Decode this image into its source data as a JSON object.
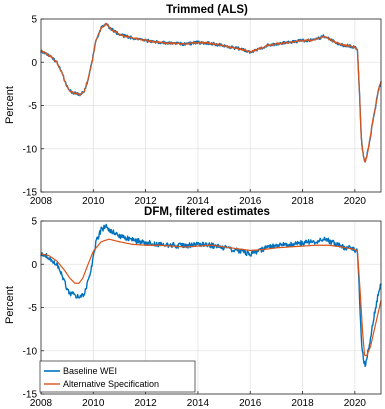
{
  "chart_data": [
    {
      "type": "line",
      "title": "Trimmed (ALS)",
      "xlabel": "",
      "ylabel": "Percent",
      "xlim": [
        2008,
        2021
      ],
      "ylim": [
        -15,
        5
      ],
      "xticks": [
        2008,
        2010,
        2012,
        2014,
        2016,
        2018,
        2020
      ],
      "yticks": [
        -15,
        -10,
        -5,
        0,
        5
      ],
      "grid": true,
      "legend": "none",
      "series": [
        {
          "color": "#0072BD",
          "noise": 0.18,
          "points": [
            [
              2008.0,
              1.3
            ],
            [
              2008.2,
              1.0
            ],
            [
              2008.4,
              0.6
            ],
            [
              2008.6,
              0.0
            ],
            [
              2008.8,
              -1.2
            ],
            [
              2008.95,
              -2.5
            ],
            [
              2009.1,
              -3.3
            ],
            [
              2009.3,
              -3.6
            ],
            [
              2009.5,
              -3.7
            ],
            [
              2009.65,
              -3.4
            ],
            [
              2009.8,
              -2.0
            ],
            [
              2009.95,
              0.0
            ],
            [
              2010.1,
              2.5
            ],
            [
              2010.3,
              4.0
            ],
            [
              2010.5,
              4.4
            ],
            [
              2010.7,
              3.8
            ],
            [
              2011.0,
              3.2
            ],
            [
              2011.5,
              2.8
            ],
            [
              2012.0,
              2.5
            ],
            [
              2012.5,
              2.3
            ],
            [
              2013.0,
              2.2
            ],
            [
              2013.5,
              2.1
            ],
            [
              2014.0,
              2.3
            ],
            [
              2014.5,
              2.2
            ],
            [
              2015.0,
              1.9
            ],
            [
              2015.5,
              1.6
            ],
            [
              2016.0,
              1.2
            ],
            [
              2016.3,
              1.5
            ],
            [
              2016.7,
              2.0
            ],
            [
              2017.0,
              2.1
            ],
            [
              2017.5,
              2.3
            ],
            [
              2018.0,
              2.5
            ],
            [
              2018.5,
              2.6
            ],
            [
              2018.8,
              3.0
            ],
            [
              2019.0,
              2.7
            ],
            [
              2019.5,
              2.0
            ],
            [
              2019.8,
              1.9
            ],
            [
              2020.0,
              1.7
            ],
            [
              2020.1,
              1.5
            ],
            [
              2020.17,
              -3.0
            ],
            [
              2020.25,
              -9.0
            ],
            [
              2020.33,
              -11.0
            ],
            [
              2020.4,
              -11.6
            ],
            [
              2020.5,
              -10.2
            ],
            [
              2020.6,
              -8.5
            ],
            [
              2020.7,
              -6.5
            ],
            [
              2020.8,
              -5.0
            ],
            [
              2020.9,
              -3.2
            ],
            [
              2021.0,
              -2.3
            ]
          ]
        },
        {
          "color": "#D95319",
          "noise": 0.1,
          "points": [
            [
              2008.0,
              1.3
            ],
            [
              2008.2,
              1.0
            ],
            [
              2008.4,
              0.6
            ],
            [
              2008.6,
              0.0
            ],
            [
              2008.8,
              -1.2
            ],
            [
              2008.95,
              -2.5
            ],
            [
              2009.1,
              -3.3
            ],
            [
              2009.3,
              -3.6
            ],
            [
              2009.5,
              -3.7
            ],
            [
              2009.65,
              -3.4
            ],
            [
              2009.8,
              -2.0
            ],
            [
              2009.95,
              0.0
            ],
            [
              2010.1,
              2.5
            ],
            [
              2010.3,
              4.0
            ],
            [
              2010.5,
              4.4
            ],
            [
              2010.7,
              3.8
            ],
            [
              2011.0,
              3.2
            ],
            [
              2011.5,
              2.8
            ],
            [
              2012.0,
              2.5
            ],
            [
              2012.5,
              2.3
            ],
            [
              2013.0,
              2.2
            ],
            [
              2013.5,
              2.1
            ],
            [
              2014.0,
              2.3
            ],
            [
              2014.5,
              2.2
            ],
            [
              2015.0,
              1.9
            ],
            [
              2015.5,
              1.6
            ],
            [
              2016.0,
              1.2
            ],
            [
              2016.3,
              1.5
            ],
            [
              2016.7,
              2.0
            ],
            [
              2017.0,
              2.1
            ],
            [
              2017.5,
              2.3
            ],
            [
              2018.0,
              2.5
            ],
            [
              2018.5,
              2.6
            ],
            [
              2018.8,
              3.0
            ],
            [
              2019.0,
              2.7
            ],
            [
              2019.5,
              2.0
            ],
            [
              2019.8,
              1.9
            ],
            [
              2020.0,
              1.7
            ],
            [
              2020.1,
              1.5
            ],
            [
              2020.17,
              -3.0
            ],
            [
              2020.25,
              -9.0
            ],
            [
              2020.33,
              -11.0
            ],
            [
              2020.4,
              -11.6
            ],
            [
              2020.5,
              -10.2
            ],
            [
              2020.6,
              -8.5
            ],
            [
              2020.7,
              -6.5
            ],
            [
              2020.8,
              -5.0
            ],
            [
              2020.9,
              -3.2
            ],
            [
              2021.0,
              -2.2
            ]
          ]
        }
      ]
    },
    {
      "type": "line",
      "title": "DFM, filtered estimates",
      "xlabel": "",
      "ylabel": "Percent",
      "xlim": [
        2008,
        2021
      ],
      "ylim": [
        -15,
        5
      ],
      "xticks": [
        2008,
        2010,
        2012,
        2014,
        2016,
        2018,
        2020
      ],
      "yticks": [
        -15,
        -10,
        -5,
        0,
        5
      ],
      "grid": true,
      "legend": "bottom-left",
      "series": [
        {
          "name": "Baseline WEI",
          "color": "#0072BD",
          "noise": 0.3,
          "points": [
            [
              2008.0,
              1.3
            ],
            [
              2008.2,
              1.0
            ],
            [
              2008.4,
              0.6
            ],
            [
              2008.6,
              0.0
            ],
            [
              2008.8,
              -1.2
            ],
            [
              2008.95,
              -2.5
            ],
            [
              2009.1,
              -3.3
            ],
            [
              2009.3,
              -3.6
            ],
            [
              2009.5,
              -3.7
            ],
            [
              2009.65,
              -3.4
            ],
            [
              2009.8,
              -2.0
            ],
            [
              2009.95,
              0.0
            ],
            [
              2010.1,
              2.5
            ],
            [
              2010.3,
              4.0
            ],
            [
              2010.5,
              4.4
            ],
            [
              2010.7,
              3.8
            ],
            [
              2011.0,
              3.2
            ],
            [
              2011.5,
              2.8
            ],
            [
              2012.0,
              2.5
            ],
            [
              2012.5,
              2.3
            ],
            [
              2013.0,
              2.2
            ],
            [
              2013.5,
              2.1
            ],
            [
              2014.0,
              2.3
            ],
            [
              2014.5,
              2.2
            ],
            [
              2015.0,
              1.9
            ],
            [
              2015.5,
              1.6
            ],
            [
              2016.0,
              1.2
            ],
            [
              2016.3,
              1.5
            ],
            [
              2016.7,
              2.0
            ],
            [
              2017.0,
              2.1
            ],
            [
              2017.5,
              2.3
            ],
            [
              2018.0,
              2.5
            ],
            [
              2018.5,
              2.6
            ],
            [
              2018.8,
              3.0
            ],
            [
              2019.0,
              2.7
            ],
            [
              2019.5,
              2.0
            ],
            [
              2019.8,
              1.9
            ],
            [
              2020.0,
              1.7
            ],
            [
              2020.1,
              1.5
            ],
            [
              2020.17,
              -3.0
            ],
            [
              2020.25,
              -9.0
            ],
            [
              2020.33,
              -11.0
            ],
            [
              2020.4,
              -11.6
            ],
            [
              2020.5,
              -10.2
            ],
            [
              2020.6,
              -8.5
            ],
            [
              2020.7,
              -6.5
            ],
            [
              2020.8,
              -5.0
            ],
            [
              2020.9,
              -3.2
            ],
            [
              2021.0,
              -2.3
            ]
          ]
        },
        {
          "name": "Alternative Specification",
          "color": "#D95319",
          "noise": 0,
          "points": [
            [
              2008.0,
              1.2
            ],
            [
              2008.3,
              1.0
            ],
            [
              2008.6,
              0.4
            ],
            [
              2008.9,
              -0.7
            ],
            [
              2009.1,
              -1.6
            ],
            [
              2009.3,
              -2.2
            ],
            [
              2009.45,
              -2.2
            ],
            [
              2009.6,
              -1.6
            ],
            [
              2009.8,
              0.0
            ],
            [
              2010.0,
              1.5
            ],
            [
              2010.3,
              2.6
            ],
            [
              2010.6,
              2.9
            ],
            [
              2011.0,
              2.6
            ],
            [
              2011.5,
              2.3
            ],
            [
              2012.0,
              2.2
            ],
            [
              2012.5,
              2.2
            ],
            [
              2013.0,
              2.1
            ],
            [
              2013.5,
              2.0
            ],
            [
              2014.0,
              2.1
            ],
            [
              2014.5,
              2.2
            ],
            [
              2015.0,
              2.0
            ],
            [
              2015.5,
              1.8
            ],
            [
              2016.0,
              1.6
            ],
            [
              2016.5,
              1.7
            ],
            [
              2017.0,
              1.9
            ],
            [
              2017.5,
              2.0
            ],
            [
              2018.0,
              2.1
            ],
            [
              2018.5,
              2.2
            ],
            [
              2019.0,
              2.2
            ],
            [
              2019.5,
              2.0
            ],
            [
              2020.0,
              1.7
            ],
            [
              2020.1,
              1.5
            ],
            [
              2020.2,
              -3.0
            ],
            [
              2020.3,
              -8.0
            ],
            [
              2020.37,
              -10.5
            ],
            [
              2020.45,
              -10.6
            ],
            [
              2020.6,
              -9.5
            ],
            [
              2020.75,
              -7.5
            ],
            [
              2020.9,
              -5.5
            ],
            [
              2021.0,
              -4.2
            ]
          ]
        }
      ]
    }
  ]
}
